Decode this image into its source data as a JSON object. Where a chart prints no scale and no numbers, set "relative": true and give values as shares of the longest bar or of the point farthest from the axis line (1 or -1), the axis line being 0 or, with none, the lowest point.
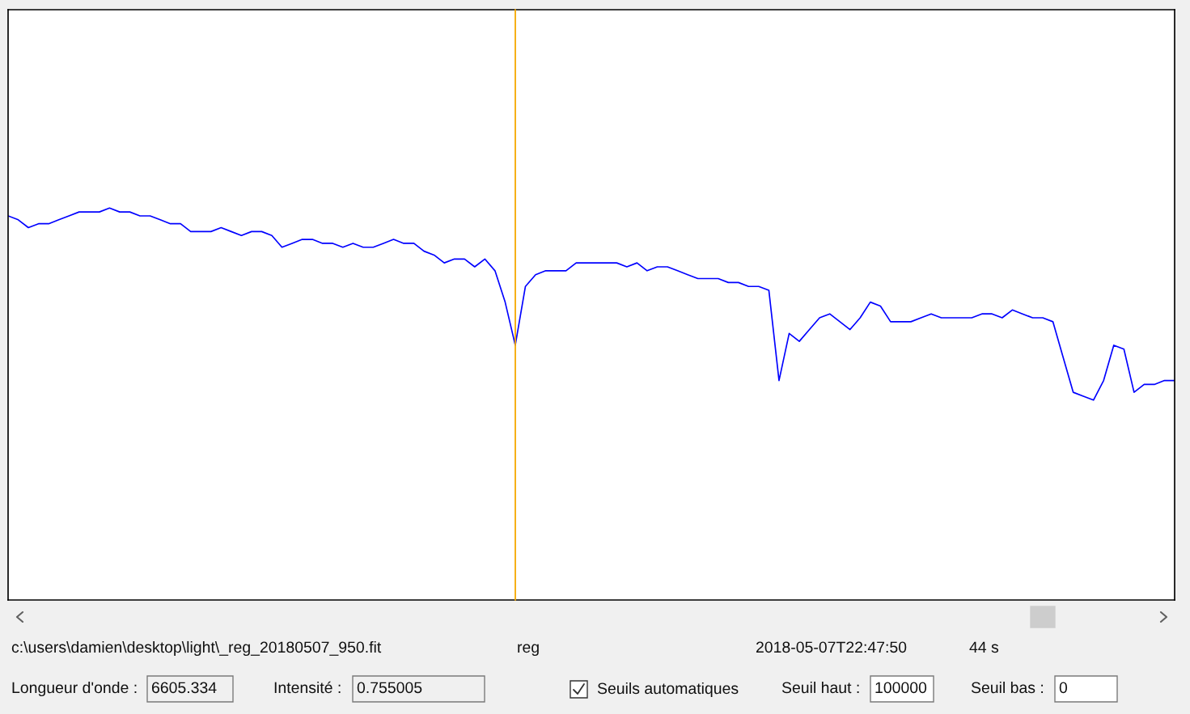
{
  "chart_data": {
    "type": "line",
    "relative": true,
    "categories": [
      null,
      null,
      null,
      null,
      null,
      null,
      null,
      null,
      null,
      null,
      null,
      null,
      null,
      null,
      null,
      null,
      null,
      null,
      null,
      null,
      null,
      null,
      null,
      null,
      null,
      null,
      null,
      null,
      null,
      null,
      null,
      null,
      null,
      null,
      null,
      null,
      null,
      null,
      null,
      null,
      null,
      null,
      null,
      null,
      null,
      null,
      null,
      null,
      null,
      null,
      null,
      null,
      null,
      null,
      null,
      null,
      null,
      null,
      null,
      null,
      null,
      null,
      null,
      null,
      null,
      null,
      null,
      null,
      null,
      null,
      null,
      null,
      null,
      null,
      null,
      null,
      null,
      null,
      null,
      null,
      null,
      null,
      null,
      null,
      null,
      null,
      null,
      null,
      null,
      null,
      null,
      null,
      null,
      null,
      null,
      null,
      null,
      null,
      null,
      null,
      null,
      null,
      null,
      null,
      null,
      null,
      null,
      null,
      null,
      null,
      null,
      null,
      null,
      null,
      null,
      null
    ],
    "series": [
      {
        "color": "#0000ff",
        "values": [
          0.98,
          0.97,
          0.95,
          0.96,
          0.96,
          0.97,
          0.98,
          0.99,
          0.99,
          0.99,
          1.0,
          0.99,
          0.99,
          0.98,
          0.98,
          0.97,
          0.96,
          0.96,
          0.94,
          0.94,
          0.94,
          0.95,
          0.94,
          0.93,
          0.94,
          0.94,
          0.93,
          0.9,
          0.91,
          0.92,
          0.92,
          0.91,
          0.91,
          0.9,
          0.91,
          0.9,
          0.9,
          0.91,
          0.92,
          0.91,
          0.91,
          0.89,
          0.88,
          0.86,
          0.87,
          0.87,
          0.85,
          0.87,
          0.84,
          0.76,
          0.65,
          0.8,
          0.83,
          0.84,
          0.84,
          0.84,
          0.86,
          0.86,
          0.86,
          0.86,
          0.86,
          0.85,
          0.86,
          0.84,
          0.85,
          0.85,
          0.84,
          0.83,
          0.82,
          0.82,
          0.82,
          0.81,
          0.81,
          0.8,
          0.8,
          0.79,
          0.56,
          0.68,
          0.66,
          0.69,
          0.72,
          0.73,
          0.71,
          0.69,
          0.72,
          0.76,
          0.75,
          0.71,
          0.71,
          0.71,
          0.72,
          0.73,
          0.72,
          0.72,
          0.72,
          0.72,
          0.73,
          0.73,
          0.72,
          0.74,
          0.73,
          0.72,
          0.72,
          0.71,
          0.62,
          0.53,
          0.52,
          0.51,
          0.56,
          0.65,
          0.64,
          0.53,
          0.55,
          0.55,
          0.56,
          0.56
        ]
      }
    ],
    "annotations": [
      "c:\\users\\damien\\desktop\\light\\_reg_20180507_950.fit",
      "reg",
      "2018-05-07T22:47:50",
      "44 s",
      "Longueur d'onde :",
      "6605.334",
      "Intensité :",
      "0.755005",
      "Seuils automatiques",
      "Seuil haut :",
      "100000",
      "Seuil bas :",
      "0"
    ]
  }
}
